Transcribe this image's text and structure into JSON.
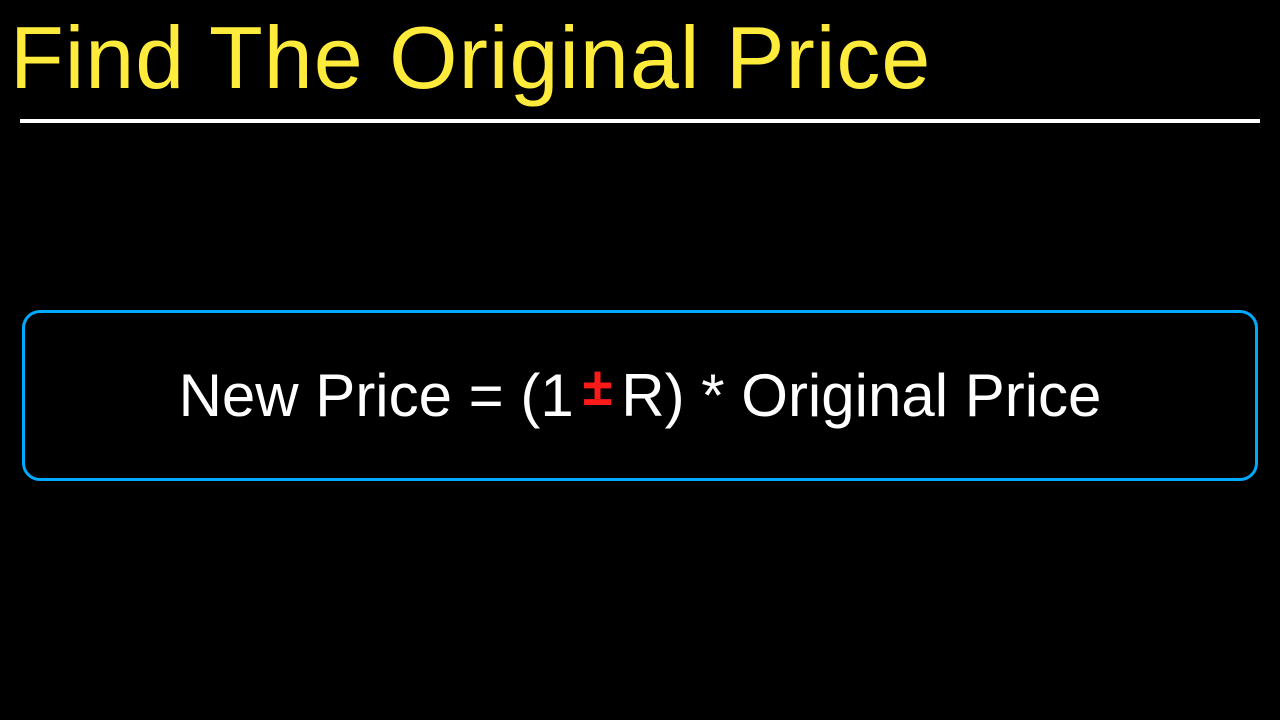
{
  "title": {
    "text": "Find The Original Price",
    "color": "#ffeb3b",
    "fontsize": 88
  },
  "divider": {
    "color": "#ffffff",
    "thickness": 4
  },
  "formula": {
    "box_border_color": "#00aaff",
    "box_border_radius": 18,
    "box_border_width": 3,
    "text_color": "#ffffff",
    "pm_color": "#ff1a1a",
    "fontsize": 60,
    "part1": "New Price = (1",
    "pm_plus": "+",
    "pm_minus": "−",
    "part2": "R) * Original Price"
  },
  "background_color": "#000000"
}
